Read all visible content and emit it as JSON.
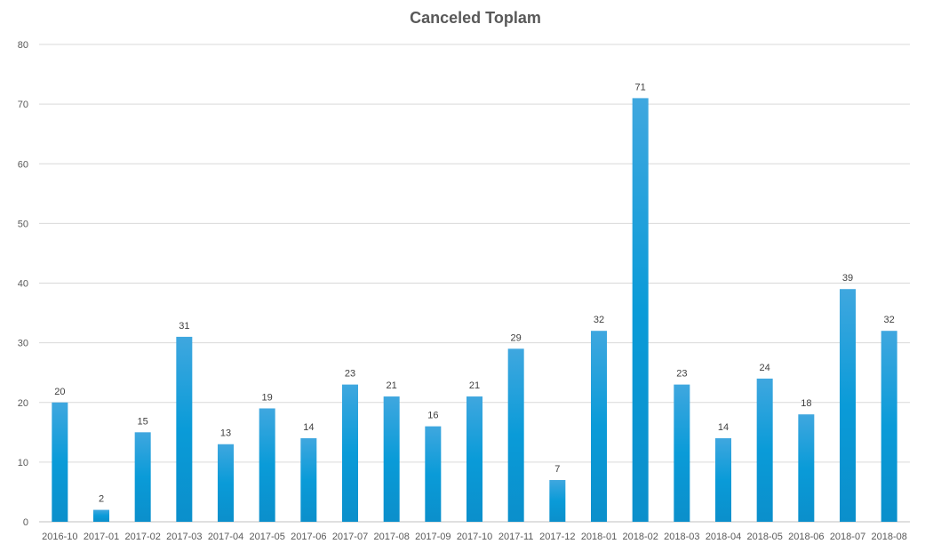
{
  "chart_data": {
    "type": "bar",
    "title": "Canceled Toplam",
    "xlabel": "",
    "ylabel": "",
    "ylim": [
      0,
      80
    ],
    "yticks": [
      0,
      10,
      20,
      30,
      40,
      50,
      60,
      70,
      80
    ],
    "grid": true,
    "legend": "none",
    "categories": [
      "2016-10",
      "2017-01",
      "2017-02",
      "2017-03",
      "2017-04",
      "2017-05",
      "2017-06",
      "2017-07",
      "2017-08",
      "2017-09",
      "2017-10",
      "2017-11",
      "2017-12",
      "2018-01",
      "2018-02",
      "2018-03",
      "2018-04",
      "2018-05",
      "2018-06",
      "2018-07",
      "2018-08"
    ],
    "values": [
      20,
      2,
      15,
      31,
      13,
      19,
      14,
      23,
      21,
      16,
      21,
      29,
      7,
      32,
      71,
      23,
      14,
      24,
      18,
      39,
      32
    ],
    "colors": {
      "bar_top": "#3fa7df",
      "bar_mid": "#0a9bd8",
      "bar_bottom": "#0b8fcb",
      "grid": "#d9d9d9",
      "axis": "#bfbfbf"
    }
  }
}
